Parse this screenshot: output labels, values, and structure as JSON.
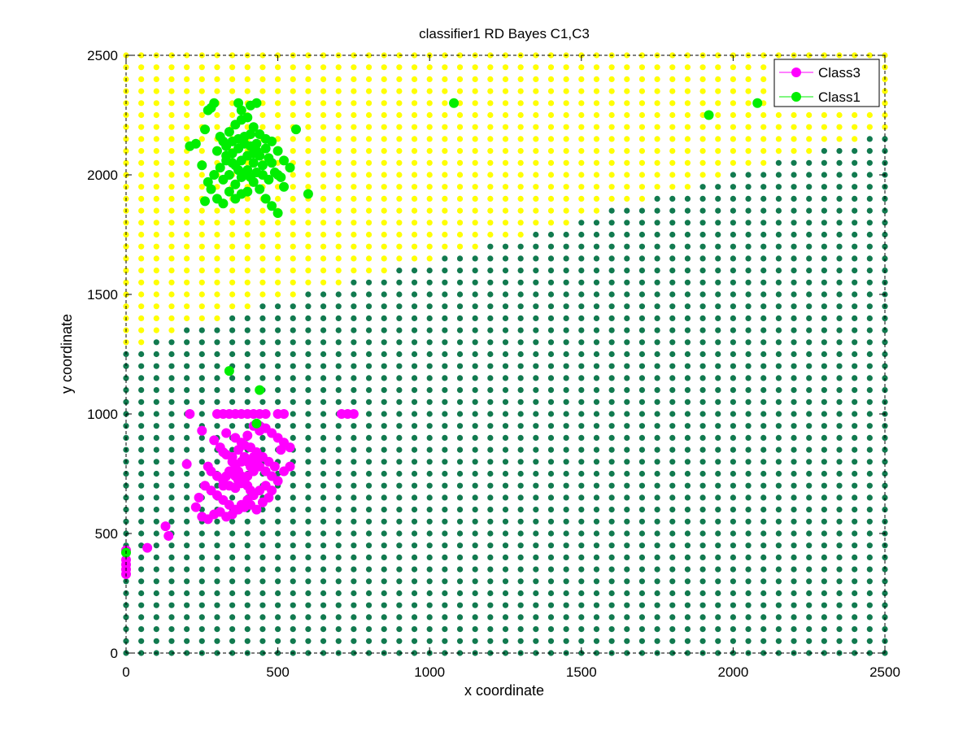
{
  "chart_data": {
    "type": "scatter",
    "title": "classifier1 RD Bayes C1,C3",
    "xlabel": "x coordinate",
    "ylabel": "y coordinate",
    "xlim": [
      0,
      2500
    ],
    "ylim": [
      0,
      2500
    ],
    "x_ticks": [
      0,
      500,
      1000,
      1500,
      2000,
      2500
    ],
    "y_ticks": [
      0,
      500,
      1000,
      1500,
      2000,
      2500
    ],
    "x_tick_labels": [
      "0",
      "500",
      "1000",
      "1500",
      "2000",
      "2500"
    ],
    "y_tick_labels": [
      "0",
      "500",
      "1000",
      "1500",
      "2000",
      "2500"
    ],
    "grid": false,
    "legend_position": "top-right",
    "decision_region": {
      "grid_step": 50,
      "boundary": [
        [
          0,
          1270
        ],
        [
          100,
          1310
        ],
        [
          200,
          1350
        ],
        [
          300,
          1390
        ],
        [
          400,
          1440
        ],
        [
          500,
          1470
        ],
        [
          600,
          1510
        ],
        [
          700,
          1540
        ],
        [
          800,
          1580
        ],
        [
          900,
          1610
        ],
        [
          1000,
          1640
        ],
        [
          1100,
          1670
        ],
        [
          1200,
          1700
        ],
        [
          1300,
          1740
        ],
        [
          1400,
          1770
        ],
        [
          1500,
          1810
        ],
        [
          1600,
          1850
        ],
        [
          1700,
          1880
        ],
        [
          1800,
          1920
        ],
        [
          1900,
          1960
        ],
        [
          2000,
          2000
        ],
        [
          2100,
          2030
        ],
        [
          2200,
          2070
        ],
        [
          2300,
          2110
        ],
        [
          2400,
          2140
        ],
        [
          2500,
          2180
        ]
      ],
      "above_color": "#ffff00",
      "below_color": "#117a4f"
    },
    "series": [
      {
        "name": "Class3",
        "color": "#ff00ff",
        "points": [
          [
            300,
            1000
          ],
          [
            320,
            1000
          ],
          [
            340,
            1000
          ],
          [
            360,
            1000
          ],
          [
            380,
            1000
          ],
          [
            400,
            1000
          ],
          [
            420,
            1000
          ],
          [
            440,
            1000
          ],
          [
            460,
            1000
          ],
          [
            210,
            1000
          ],
          [
            500,
            1000
          ],
          [
            520,
            1000
          ],
          [
            710,
            1000
          ],
          [
            730,
            1000
          ],
          [
            750,
            1000
          ],
          [
            420,
            950
          ],
          [
            440,
            950
          ],
          [
            460,
            940
          ],
          [
            480,
            920
          ],
          [
            500,
            900
          ],
          [
            520,
            880
          ],
          [
            540,
            860
          ],
          [
            440,
            930
          ],
          [
            330,
            920
          ],
          [
            360,
            900
          ],
          [
            380,
            880
          ],
          [
            400,
            910
          ],
          [
            250,
            930
          ],
          [
            290,
            890
          ],
          [
            310,
            860
          ],
          [
            320,
            840
          ],
          [
            330,
            830
          ],
          [
            350,
            820
          ],
          [
            370,
            850
          ],
          [
            390,
            870
          ],
          [
            410,
            860
          ],
          [
            430,
            840
          ],
          [
            450,
            820
          ],
          [
            470,
            800
          ],
          [
            490,
            780
          ],
          [
            510,
            850
          ],
          [
            270,
            780
          ],
          [
            280,
            760
          ],
          [
            300,
            740
          ],
          [
            320,
            720
          ],
          [
            340,
            700
          ],
          [
            360,
            690
          ],
          [
            380,
            710
          ],
          [
            400,
            740
          ],
          [
            420,
            760
          ],
          [
            440,
            780
          ],
          [
            460,
            760
          ],
          [
            480,
            740
          ],
          [
            500,
            720
          ],
          [
            520,
            760
          ],
          [
            540,
            780
          ],
          [
            260,
            700
          ],
          [
            280,
            680
          ],
          [
            300,
            660
          ],
          [
            320,
            640
          ],
          [
            340,
            620
          ],
          [
            360,
            600
          ],
          [
            380,
            620
          ],
          [
            400,
            640
          ],
          [
            420,
            660
          ],
          [
            440,
            680
          ],
          [
            460,
            700
          ],
          [
            480,
            680
          ],
          [
            200,
            790
          ],
          [
            240,
            650
          ],
          [
            230,
            610
          ],
          [
            250,
            570
          ],
          [
            270,
            560
          ],
          [
            290,
            580
          ],
          [
            310,
            590
          ],
          [
            330,
            570
          ],
          [
            350,
            580
          ],
          [
            370,
            600
          ],
          [
            390,
            610
          ],
          [
            410,
            620
          ],
          [
            430,
            600
          ],
          [
            450,
            630
          ],
          [
            470,
            650
          ],
          [
            350,
            800
          ],
          [
            360,
            780
          ],
          [
            370,
            760
          ],
          [
            380,
            740
          ],
          [
            390,
            720
          ],
          [
            400,
            700
          ],
          [
            410,
            680
          ],
          [
            340,
            760
          ],
          [
            330,
            740
          ],
          [
            320,
            700
          ],
          [
            360,
            740
          ],
          [
            370,
            720
          ],
          [
            380,
            800
          ],
          [
            390,
            820
          ],
          [
            400,
            800
          ],
          [
            410,
            780
          ],
          [
            420,
            820
          ],
          [
            430,
            800
          ],
          [
            130,
            530
          ],
          [
            140,
            490
          ],
          [
            70,
            440
          ],
          [
            0,
            430
          ],
          [
            0,
            390
          ],
          [
            0,
            370
          ],
          [
            0,
            350
          ],
          [
            0,
            330
          ]
        ]
      },
      {
        "name": "Class1",
        "color": "#00ee00",
        "points": [
          [
            280,
            2280
          ],
          [
            290,
            2300
          ],
          [
            370,
            2300
          ],
          [
            380,
            2270
          ],
          [
            410,
            2290
          ],
          [
            430,
            2300
          ],
          [
            270,
            2270
          ],
          [
            260,
            2190
          ],
          [
            230,
            2130
          ],
          [
            210,
            2120
          ],
          [
            250,
            2040
          ],
          [
            270,
            1970
          ],
          [
            260,
            1890
          ],
          [
            280,
            1940
          ],
          [
            300,
            1900
          ],
          [
            320,
            1880
          ],
          [
            340,
            1930
          ],
          [
            360,
            1960
          ],
          [
            380,
            1990
          ],
          [
            400,
            2020
          ],
          [
            420,
            2050
          ],
          [
            440,
            2080
          ],
          [
            460,
            2110
          ],
          [
            480,
            2140
          ],
          [
            500,
            2100
          ],
          [
            520,
            2060
          ],
          [
            540,
            2030
          ],
          [
            560,
            2190
          ],
          [
            600,
            1920
          ],
          [
            500,
            1840
          ],
          [
            480,
            1870
          ],
          [
            460,
            1900
          ],
          [
            440,
            1940
          ],
          [
            420,
            1970
          ],
          [
            300,
            2100
          ],
          [
            320,
            2140
          ],
          [
            340,
            2180
          ],
          [
            360,
            2210
          ],
          [
            380,
            2230
          ],
          [
            400,
            2240
          ],
          [
            420,
            2200
          ],
          [
            440,
            2170
          ],
          [
            460,
            2150
          ],
          [
            330,
            2080
          ],
          [
            350,
            2050
          ],
          [
            370,
            2020
          ],
          [
            390,
            2000
          ],
          [
            410,
            1990
          ],
          [
            430,
            2010
          ],
          [
            450,
            2040
          ],
          [
            470,
            2070
          ],
          [
            290,
            2000
          ],
          [
            310,
            2030
          ],
          [
            330,
            2060
          ],
          [
            350,
            2090
          ],
          [
            370,
            2110
          ],
          [
            390,
            2130
          ],
          [
            410,
            2120
          ],
          [
            430,
            2100
          ],
          [
            450,
            2000
          ],
          [
            470,
            1980
          ],
          [
            490,
            2010
          ],
          [
            510,
            1990
          ],
          [
            320,
            1980
          ],
          [
            340,
            2000
          ],
          [
            360,
            2040
          ],
          [
            380,
            2060
          ],
          [
            400,
            2080
          ],
          [
            420,
            2090
          ],
          [
            310,
            2160
          ],
          [
            330,
            2120
          ],
          [
            350,
            2140
          ],
          [
            370,
            2150
          ],
          [
            390,
            2160
          ],
          [
            410,
            2170
          ],
          [
            430,
            2130
          ],
          [
            400,
            1930
          ],
          [
            380,
            1920
          ],
          [
            360,
            1900
          ],
          [
            480,
            2050
          ],
          [
            500,
            2000
          ],
          [
            520,
            1950
          ],
          [
            1080,
            2300
          ],
          [
            1920,
            2250
          ],
          [
            2080,
            2300
          ],
          [
            340,
            1180
          ],
          [
            440,
            1100
          ],
          [
            430,
            960
          ],
          [
            0,
            420
          ]
        ]
      }
    ]
  }
}
